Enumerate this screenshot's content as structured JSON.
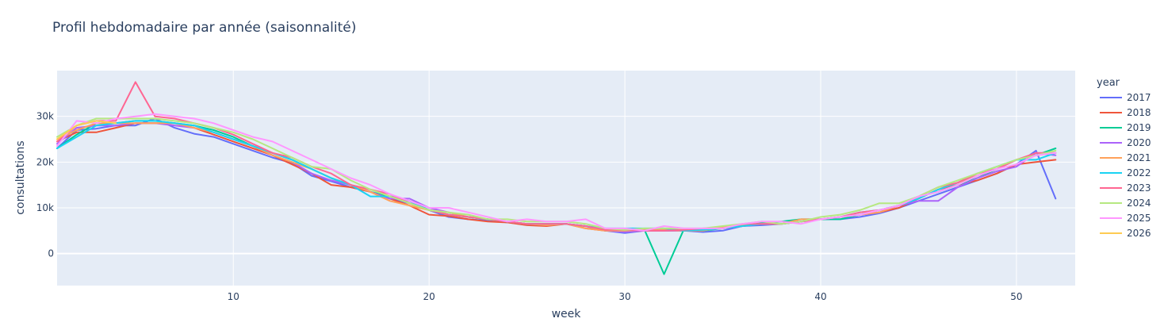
{
  "chart_data": {
    "type": "line",
    "title": "Profil hebdomadaire par année (saisonnalité)",
    "xlabel": "week",
    "ylabel": "consultations",
    "xlim": [
      1,
      53
    ],
    "ylim": [
      -7000,
      40000
    ],
    "x_ticks": [
      10,
      20,
      30,
      40,
      50
    ],
    "x_tick_labels": [
      "10",
      "20",
      "30",
      "40",
      "50"
    ],
    "y_ticks": [
      0,
      10000,
      20000,
      30000
    ],
    "y_tick_labels": [
      "0",
      "10k",
      "20k",
      "30k"
    ],
    "grid": true,
    "legend": {
      "title": "year",
      "placement": "right"
    },
    "x": [
      1,
      2,
      3,
      4,
      5,
      6,
      7,
      8,
      9,
      10,
      11,
      12,
      13,
      14,
      15,
      16,
      17,
      18,
      19,
      20,
      21,
      22,
      23,
      24,
      25,
      26,
      27,
      28,
      29,
      30,
      31,
      32,
      33,
      34,
      35,
      36,
      37,
      38,
      39,
      40,
      41,
      42,
      43,
      44,
      45,
      46,
      47,
      48,
      49,
      50,
      51,
      52
    ],
    "series": [
      {
        "name": "2017",
        "color": "#636EFA",
        "values": [
          23000,
          27000,
          27300,
          28000,
          28000,
          29500,
          27500,
          26200,
          25500,
          24000,
          22500,
          21000,
          19800,
          17000,
          15800,
          14500,
          13500,
          12000,
          11000,
          9500,
          8000,
          7500,
          7200,
          6800,
          6500,
          6300,
          6500,
          6000,
          5000,
          4500,
          5000,
          5200,
          5000,
          4700,
          5000,
          6000,
          6200,
          6500,
          7000,
          7500,
          7500,
          8000,
          8800,
          10000,
          11500,
          13000,
          14500,
          16000,
          17500,
          19500,
          22500,
          12000
        ]
      },
      {
        "name": "2018",
        "color": "#EF553B",
        "values": [
          24500,
          26500,
          26500,
          27500,
          28500,
          28500,
          28500,
          27500,
          26000,
          24500,
          23000,
          21500,
          19500,
          17500,
          15000,
          14500,
          13500,
          12000,
          10500,
          8500,
          8200,
          7500,
          7000,
          6800,
          6200,
          6000,
          6500,
          5500,
          5000,
          4800,
          5000,
          5000,
          5000,
          5200,
          5500,
          6000,
          6500,
          6500,
          7000,
          7500,
          8000,
          8500,
          9000,
          10000,
          12000,
          14000,
          15000,
          16000,
          17500,
          19500,
          20000,
          20500
        ]
      },
      {
        "name": "2019",
        "color": "#00CC96",
        "values": [
          23000,
          26000,
          28500,
          28500,
          29000,
          29000,
          28500,
          28000,
          27000,
          25500,
          23500,
          22000,
          20500,
          18500,
          16500,
          15000,
          13500,
          12500,
          11500,
          9500,
          8500,
          8000,
          7500,
          7000,
          6500,
          6500,
          6500,
          6000,
          5000,
          5000,
          5200,
          -4500,
          5200,
          5000,
          5500,
          6200,
          6800,
          7000,
          7500,
          7500,
          7500,
          8500,
          9500,
          10500,
          12500,
          13500,
          15000,
          16500,
          18500,
          20500,
          21500,
          23000
        ]
      },
      {
        "name": "2020",
        "color": "#AB63FA",
        "values": [
          24000,
          27500,
          28000,
          28000,
          28500,
          28500,
          28000,
          27500,
          26500,
          25000,
          23500,
          21500,
          20000,
          17500,
          16000,
          15000,
          13500,
          12000,
          12000,
          10000,
          9000,
          8000,
          7500,
          7000,
          6500,
          6500,
          6500,
          6000,
          5000,
          4700,
          5000,
          5000,
          5000,
          5200,
          5500,
          6000,
          6500,
          6500,
          7000,
          7500,
          8000,
          8500,
          9000,
          10500,
          11500,
          11500,
          14500,
          16500,
          18000,
          19000,
          22000,
          21500
        ]
      },
      {
        "name": "2021",
        "color": "#FFA15A",
        "values": [
          25000,
          27000,
          28500,
          28500,
          28500,
          28500,
          28500,
          27500,
          26500,
          25000,
          23500,
          21500,
          20000,
          18500,
          16500,
          15000,
          13500,
          11500,
          10500,
          9500,
          9000,
          8000,
          7500,
          7000,
          6500,
          6200,
          6500,
          5500,
          5000,
          5000,
          5200,
          5200,
          5000,
          5000,
          5800,
          6200,
          6500,
          6500,
          7500,
          7500,
          8000,
          8500,
          9000,
          10500,
          12000,
          14000,
          15500,
          17000,
          18500,
          20500,
          21500,
          22000
        ]
      },
      {
        "name": "2022",
        "color": "#19D3F3",
        "values": [
          23000,
          25500,
          28000,
          28500,
          29000,
          29000,
          28500,
          28000,
          26500,
          25000,
          23500,
          22000,
          20500,
          18500,
          16500,
          15000,
          12500,
          12500,
          11500,
          9500,
          8500,
          8000,
          7500,
          7000,
          6500,
          6500,
          6500,
          6000,
          5500,
          5500,
          5500,
          5500,
          5000,
          5200,
          5500,
          6000,
          6500,
          6500,
          7000,
          7500,
          8000,
          9000,
          9500,
          10500,
          12000,
          14000,
          15500,
          17500,
          19000,
          20500,
          20500,
          22000
        ]
      },
      {
        "name": "2023",
        "color": "#FF6692",
        "values": [
          24500,
          28000,
          29000,
          29000,
          37500,
          30000,
          29500,
          28500,
          27500,
          26000,
          24000,
          22000,
          21000,
          19000,
          17500,
          15000,
          14000,
          13000,
          11000,
          9500,
          8500,
          8000,
          7500,
          7000,
          6500,
          6500,
          6500,
          6000,
          5200,
          5200,
          5000,
          5000,
          5200,
          5500,
          5500,
          6500,
          6500,
          6500,
          7000,
          7500,
          8000,
          9000,
          9500,
          10500,
          12500,
          14500,
          15500,
          17500,
          18500,
          20500,
          22000,
          22000
        ]
      },
      {
        "name": "2024",
        "color": "#B6E880",
        "values": [
          25500,
          28000,
          29500,
          29500,
          29500,
          29500,
          29000,
          28500,
          27500,
          26500,
          25000,
          23000,
          21000,
          19000,
          18500,
          16000,
          14000,
          12500,
          11000,
          9500,
          9000,
          8500,
          7500,
          7500,
          7000,
          7000,
          7000,
          6500,
          5500,
          5200,
          5500,
          5500,
          5500,
          5500,
          6000,
          6500,
          7000,
          6500,
          7000,
          8000,
          8500,
          9500,
          11000,
          11000,
          12500,
          14500,
          16000,
          17500,
          19000,
          20500,
          21500,
          22500
        ]
      },
      {
        "name": "2025",
        "color": "#FF97FF",
        "values": [
          23500,
          29000,
          28500,
          29500,
          30000,
          30500,
          30000,
          29500,
          28500,
          27000,
          25500,
          24500,
          22500,
          20500,
          18500,
          16500,
          15000,
          13000,
          11500,
          10000,
          10000,
          9000,
          8000,
          7000,
          7500,
          7000,
          7000,
          7500,
          5500,
          5500,
          5000,
          6000,
          5500,
          5500,
          5500,
          6500,
          7000,
          7000,
          6500,
          7500,
          8000,
          8500,
          9500,
          10500,
          12500,
          13500,
          15000,
          17000,
          18500,
          19500,
          21500,
          22000
        ]
      },
      {
        "name": "2026",
        "color": "#FECB52",
        "values": [
          25000,
          28000,
          29000,
          28500,
          null,
          null,
          null,
          null,
          null,
          null,
          null,
          null,
          null,
          null,
          null,
          null,
          null,
          null,
          null,
          null,
          null,
          null,
          null,
          null,
          null,
          null,
          null,
          null,
          null,
          null,
          null,
          null,
          null,
          null,
          null,
          null,
          null,
          null,
          null,
          null,
          null,
          null,
          null,
          null,
          null,
          null,
          null,
          null,
          null,
          null,
          null,
          null
        ]
      }
    ]
  }
}
